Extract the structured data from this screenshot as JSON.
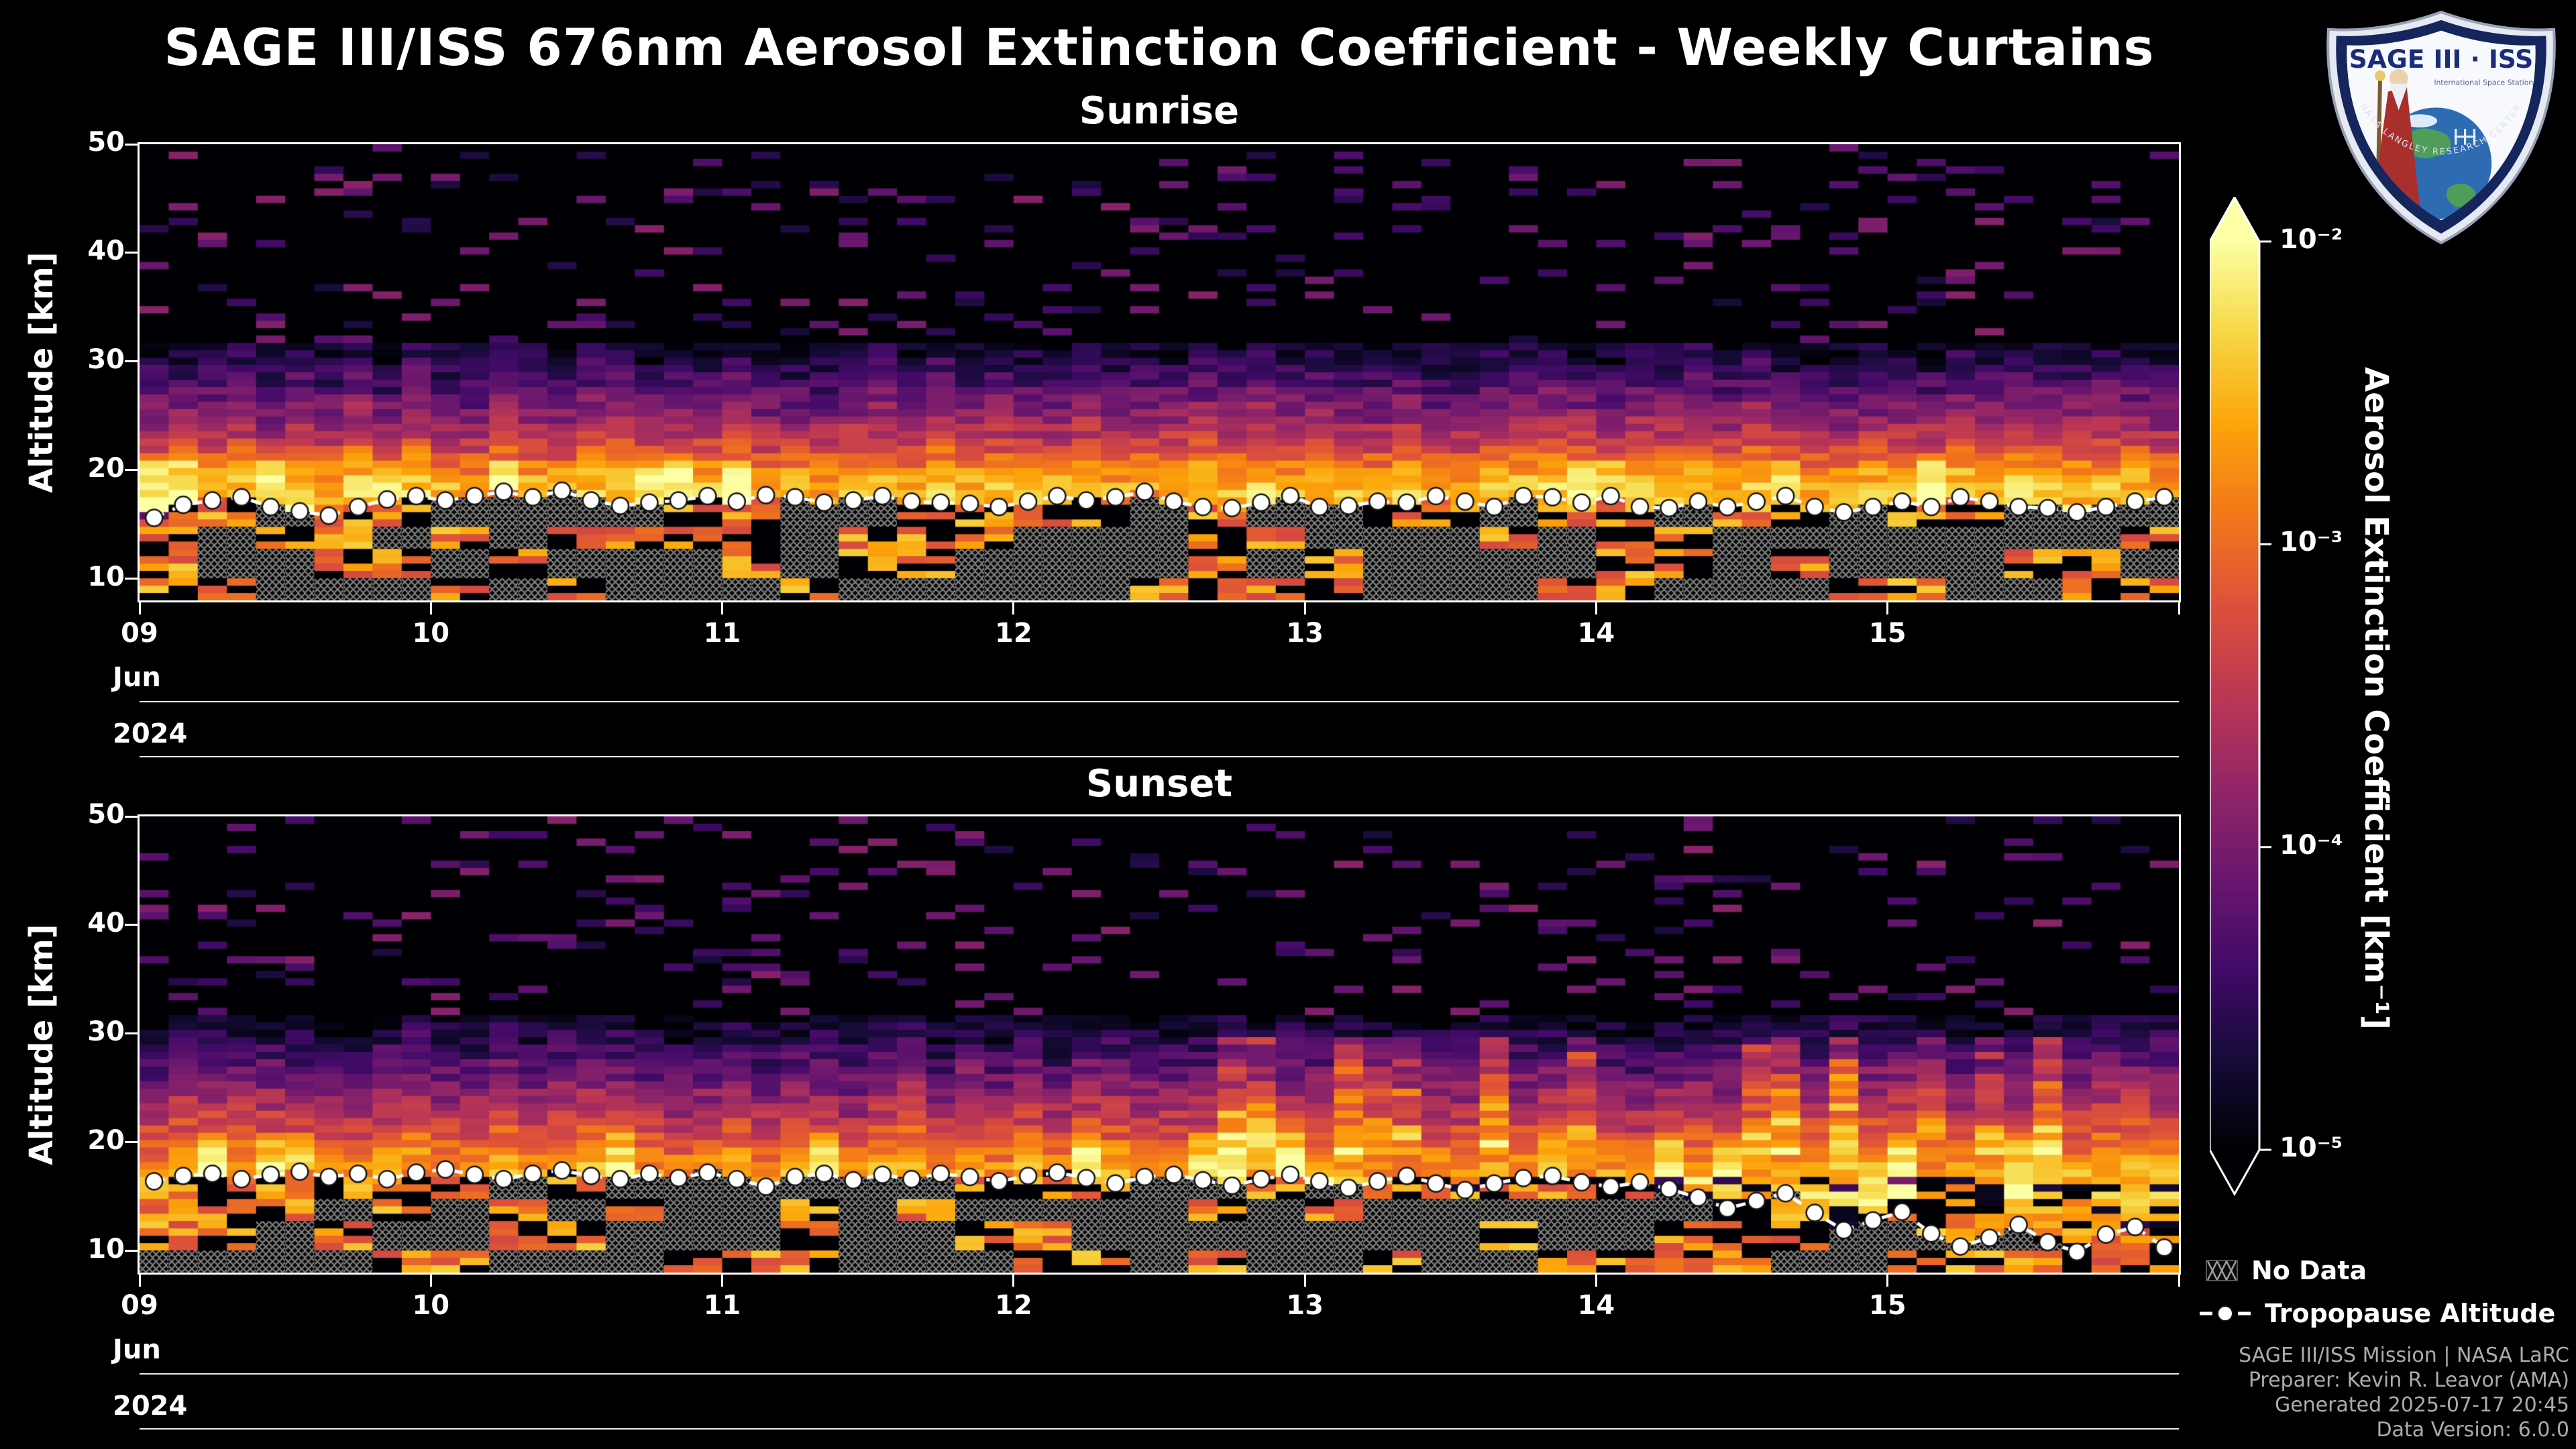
{
  "title": "SAGE III/ISS 676nm Aerosol Extinction Coefficient - Weekly Curtains",
  "logo": {
    "title": "SAGE III · ISS",
    "subtitle": "International Space Station",
    "ring_text": "NASA LANGLEY RESEARCH CENTER"
  },
  "colorbar": {
    "label": "Aerosol Extinction Coefficient [km⁻¹]",
    "ticks": [
      {
        "label": "10⁻²",
        "frac": 0
      },
      {
        "label": "10⁻³",
        "frac": 0.3333
      },
      {
        "label": "10⁻⁴",
        "frac": 0.6667
      },
      {
        "label": "10⁻⁵",
        "frac": 1
      }
    ]
  },
  "legend": {
    "no_data_label": "No Data",
    "tropopause_label": "Tropopause Altitude"
  },
  "attribution": [
    "SAGE III/ISS Mission | NASA LaRC",
    "Preparer: Kevin R. Leavor (AMA)",
    "Generated 2025-07-17 20:45",
    "Data Version: 6.0.0"
  ],
  "chart_data": {
    "type": "heatmap",
    "x_range_date": {
      "month": "Jun",
      "year": "2024",
      "day_start": 9,
      "day_end": 16
    },
    "alt_range": [
      8,
      50
    ],
    "scale": {
      "type": "log",
      "vmin": 1e-05,
      "vmax": 0.01,
      "units": "km⁻¹"
    },
    "colormap": "inferno",
    "colormap_stops": [
      [
        0,
        "#000004"
      ],
      [
        0.1,
        "#160b39"
      ],
      [
        0.2,
        "#420a68"
      ],
      [
        0.3,
        "#6a176e"
      ],
      [
        0.4,
        "#932667"
      ],
      [
        0.5,
        "#bc3754"
      ],
      [
        0.6,
        "#dd513a"
      ],
      [
        0.7,
        "#f37819"
      ],
      [
        0.8,
        "#fca50a"
      ],
      [
        0.9,
        "#f6d746"
      ],
      [
        1,
        "#fcffa4"
      ]
    ],
    "panels": [
      {
        "id": "sunrise",
        "title": "Sunrise",
        "ylabel": "Altitude [km]",
        "x_axis_month": "Jun",
        "x_axis_year": "2024",
        "x_ticks": [
          "09",
          "10",
          "11",
          "12",
          "13",
          "14",
          "15"
        ],
        "y_ticks": [
          50,
          40,
          30,
          20,
          10
        ],
        "columns": 70,
        "rows": 62,
        "seed": 11,
        "elevated_plumes": false,
        "profile_log10": [
          [
            50,
            -5.5
          ],
          [
            34,
            -5.15
          ],
          [
            30,
            -4.6
          ],
          [
            26,
            -4.0
          ],
          [
            23,
            -3.5
          ],
          [
            21,
            -3.0
          ],
          [
            19.5,
            -2.6
          ],
          [
            18,
            -2.45
          ],
          [
            16,
            -2.55
          ],
          [
            13,
            -2.7
          ],
          [
            8,
            -2.8
          ]
        ],
        "tropopause_km": [
          15.6,
          16.8,
          17.2,
          17.5,
          16.6,
          16.2,
          15.8,
          16.6,
          17.3,
          17.6,
          17.2,
          17.6,
          18.0,
          17.5,
          18.1,
          17.2,
          16.7,
          17.0,
          17.2,
          17.6,
          17.1,
          17.7,
          17.5,
          17.0,
          17.2,
          17.6,
          17.1,
          17.0,
          16.9,
          16.6,
          17.1,
          17.6,
          17.2,
          17.5,
          18.0,
          17.1,
          16.6,
          16.5,
          17.0,
          17.6,
          16.6,
          16.7,
          17.1,
          17.0,
          17.6,
          17.1,
          16.6,
          17.6,
          17.5,
          17.0,
          17.6,
          16.6,
          16.5,
          17.1,
          16.6,
          17.1,
          17.6,
          16.6,
          16.1,
          16.6,
          17.1,
          16.6,
          17.5,
          17.1,
          16.6,
          16.5,
          16.1,
          16.6,
          17.1,
          17.5
        ]
      },
      {
        "id": "sunset",
        "title": "Sunset",
        "ylabel": "Altitude [km]",
        "x_axis_month": "Jun",
        "x_axis_year": "2024",
        "x_ticks": [
          "09",
          "10",
          "11",
          "12",
          "13",
          "14",
          "15"
        ],
        "y_ticks": [
          50,
          40,
          30,
          20,
          10
        ],
        "columns": 70,
        "rows": 62,
        "seed": 29,
        "elevated_plumes": true,
        "profile_log10": [
          [
            50,
            -5.5
          ],
          [
            34,
            -5.2
          ],
          [
            30,
            -4.65
          ],
          [
            26,
            -4.05
          ],
          [
            23,
            -3.6
          ],
          [
            20,
            -3.1
          ],
          [
            18,
            -2.7
          ],
          [
            16,
            -2.55
          ],
          [
            14,
            -2.7
          ],
          [
            8,
            -2.85
          ]
        ],
        "tropopause_km": [
          16.4,
          16.9,
          17.1,
          16.6,
          17.0,
          17.3,
          16.8,
          17.1,
          16.6,
          17.2,
          17.5,
          17.0,
          16.6,
          17.1,
          17.4,
          16.9,
          16.6,
          17.1,
          16.7,
          17.2,
          16.6,
          15.9,
          16.8,
          17.1,
          16.5,
          17.0,
          16.6,
          17.1,
          16.8,
          16.4,
          16.9,
          17.2,
          16.7,
          16.2,
          16.8,
          17.0,
          16.5,
          16.0,
          16.6,
          17.0,
          16.4,
          15.8,
          16.4,
          16.9,
          16.2,
          15.6,
          16.2,
          16.7,
          16.9,
          16.3,
          15.9,
          16.3,
          15.7,
          14.9,
          13.9,
          14.6,
          15.3,
          13.5,
          11.9,
          12.8,
          13.6,
          11.6,
          10.4,
          11.2,
          12.4,
          10.8,
          9.9,
          11.5,
          12.2,
          10.3
        ]
      }
    ]
  }
}
